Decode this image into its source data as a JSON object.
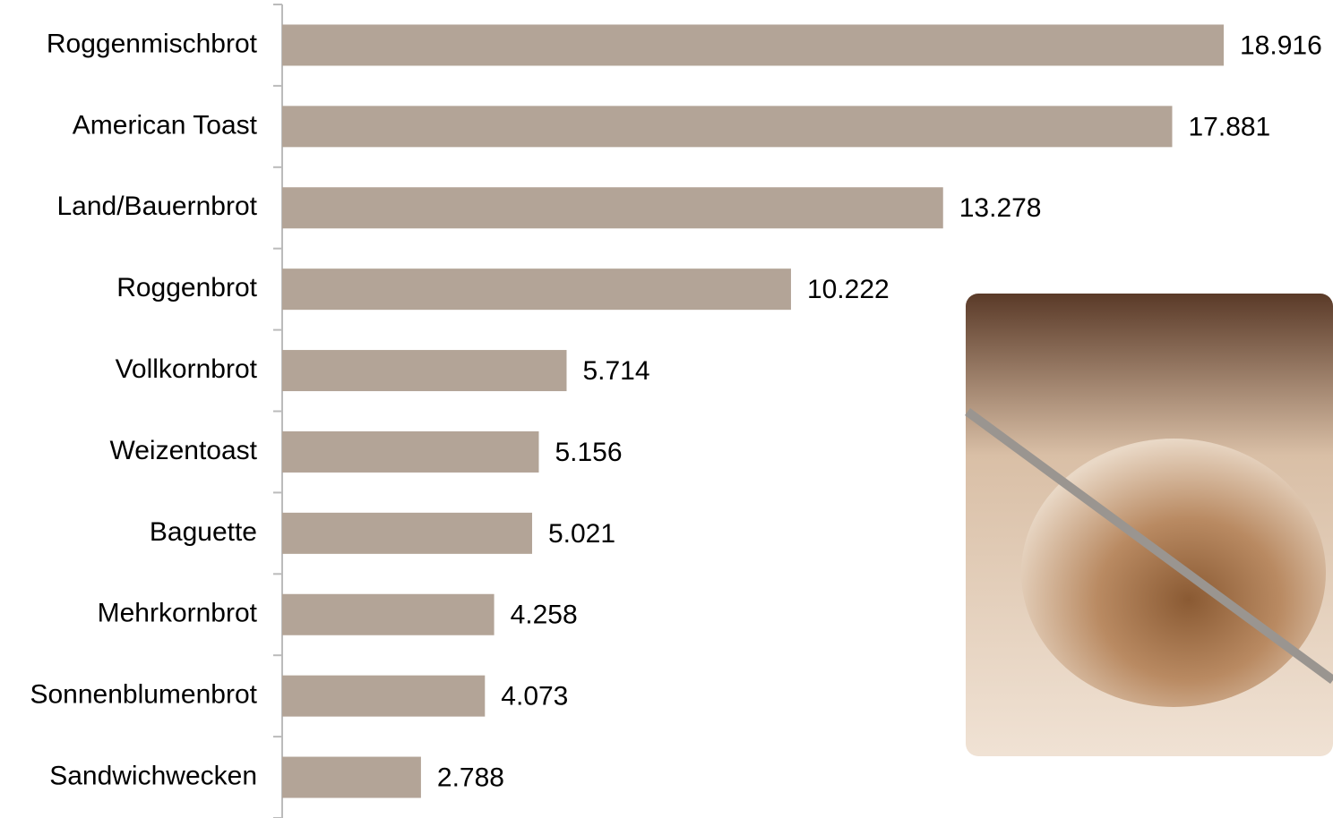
{
  "chart_data": {
    "type": "bar",
    "orientation": "horizontal",
    "categories": [
      "Roggenmischbrot",
      "American Toast",
      "Land/Bauernbrot",
      "Roggenbrot",
      "Vollkornbrot",
      "Weizentoast",
      "Baguette",
      "Mehrkornbrot",
      "Sonnenblumenbrot",
      "Sandwichwecken"
    ],
    "values": [
      18.916,
      17.881,
      13.278,
      10.222,
      5.714,
      5.156,
      5.021,
      4.258,
      4.073,
      2.788
    ],
    "color": "#b3a497"
  }
}
